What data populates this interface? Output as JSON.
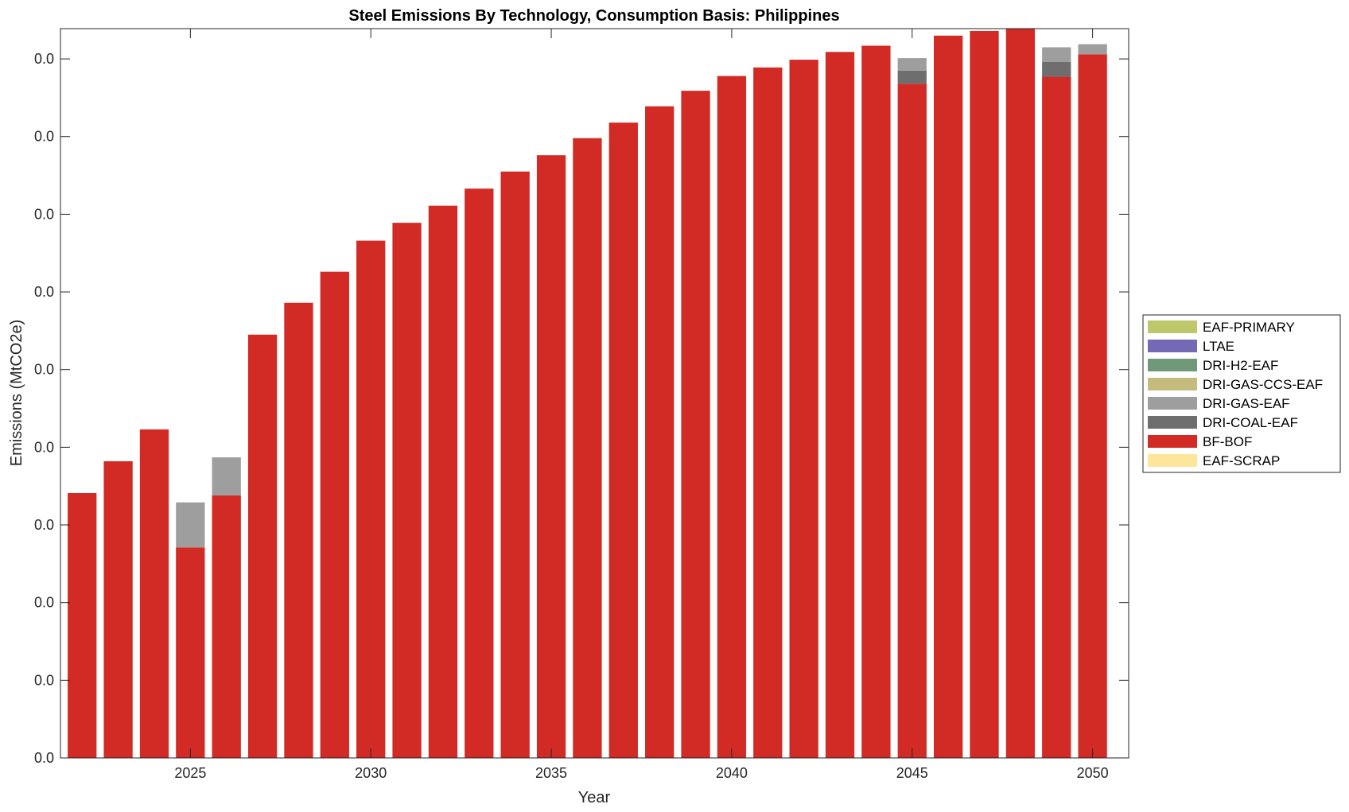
{
  "chart_data": {
    "type": "bar",
    "stacked": true,
    "title": "Steel Emissions By Technology, Consumption Basis: Philippines",
    "xlabel": "Year",
    "ylabel": "Emissions (MtCO2e)",
    "x": [
      2022,
      2023,
      2024,
      2025,
      2026,
      2027,
      2028,
      2029,
      2030,
      2031,
      2032,
      2033,
      2034,
      2035,
      2036,
      2037,
      2038,
      2039,
      2040,
      2041,
      2042,
      2043,
      2044,
      2045,
      2046,
      2047,
      2048,
      2049,
      2050
    ],
    "xlim": [
      2021.4,
      2051
    ],
    "xticks": [
      2025,
      2030,
      2035,
      2040,
      2045,
      2050
    ],
    "xtick_labels": [
      "2025",
      "2030",
      "2035",
      "2040",
      "2045",
      "2050"
    ],
    "ylim": [
      0,
      9.39
    ],
    "yticks": [
      0,
      1,
      2,
      3,
      4,
      5,
      6,
      7,
      8,
      9
    ],
    "ytick_labels": [
      "0.0",
      "0.0",
      "0.0",
      "0.0",
      "0.0",
      "0.0",
      "0.0",
      "0.0",
      "0.0",
      "0.0"
    ],
    "y_units_note": "values in relative tick units",
    "grid": false,
    "legend_position": "outside-right",
    "series": [
      {
        "name": "EAF-SCRAP",
        "color": "#fde59a",
        "values": [
          0,
          0,
          0,
          0,
          0,
          0,
          0,
          0,
          0,
          0,
          0,
          0,
          0,
          0,
          0,
          0,
          0,
          0,
          0,
          0,
          0,
          0,
          0,
          0,
          0,
          0,
          0,
          0,
          0
        ]
      },
      {
        "name": "BF-BOF",
        "color": "#d22a24",
        "values": [
          3.41,
          3.82,
          4.23,
          2.71,
          3.38,
          5.45,
          5.86,
          6.26,
          6.66,
          6.89,
          7.11,
          7.33,
          7.55,
          7.76,
          7.98,
          8.18,
          8.39,
          8.59,
          8.78,
          8.89,
          8.99,
          9.09,
          9.17,
          8.68,
          9.3,
          9.36,
          9.39,
          8.77,
          9.06
        ]
      },
      {
        "name": "DRI-COAL-EAF",
        "color": "#6e6e6e",
        "values": [
          0,
          0,
          0,
          0,
          0,
          0,
          0,
          0,
          0,
          0,
          0,
          0,
          0,
          0,
          0,
          0,
          0,
          0,
          0,
          0,
          0,
          0,
          0,
          0.17,
          0,
          0,
          0,
          0.19,
          0
        ]
      },
      {
        "name": "DRI-GAS-EAF",
        "color": "#9e9e9e",
        "values": [
          0,
          0,
          0,
          0.58,
          0.49,
          0,
          0,
          0,
          0,
          0,
          0,
          0,
          0,
          0,
          0,
          0,
          0,
          0,
          0,
          0,
          0,
          0,
          0,
          0.16,
          0,
          0,
          0,
          0.19,
          0.13
        ]
      },
      {
        "name": "DRI-GAS-CCS-EAF",
        "color": "#c4bb7c",
        "values": [
          0,
          0,
          0,
          0,
          0,
          0,
          0,
          0,
          0,
          0,
          0,
          0,
          0,
          0,
          0,
          0,
          0,
          0,
          0,
          0,
          0,
          0,
          0,
          0,
          0,
          0,
          0,
          0,
          0
        ]
      },
      {
        "name": "DRI-H2-EAF",
        "color": "#72987a",
        "values": [
          0,
          0,
          0,
          0,
          0,
          0,
          0,
          0,
          0,
          0,
          0,
          0,
          0,
          0,
          0,
          0,
          0,
          0,
          0,
          0,
          0,
          0,
          0,
          0,
          0,
          0,
          0,
          0,
          0
        ]
      },
      {
        "name": "LTAE",
        "color": "#7369b5",
        "values": [
          0,
          0,
          0,
          0,
          0,
          0,
          0,
          0,
          0,
          0,
          0,
          0,
          0,
          0,
          0,
          0,
          0,
          0,
          0,
          0,
          0,
          0,
          0,
          0,
          0,
          0,
          0,
          0,
          0
        ]
      },
      {
        "name": "EAF-PRIMARY",
        "color": "#bec86a",
        "values": [
          0,
          0,
          0,
          0,
          0,
          0,
          0,
          0,
          0,
          0,
          0,
          0,
          0,
          0,
          0,
          0,
          0,
          0,
          0,
          0,
          0,
          0,
          0,
          0,
          0,
          0,
          0,
          0,
          0
        ]
      }
    ],
    "legend_order": [
      "EAF-PRIMARY",
      "LTAE",
      "DRI-H2-EAF",
      "DRI-GAS-CCS-EAF",
      "DRI-GAS-EAF",
      "DRI-COAL-EAF",
      "BF-BOF",
      "EAF-SCRAP"
    ]
  }
}
